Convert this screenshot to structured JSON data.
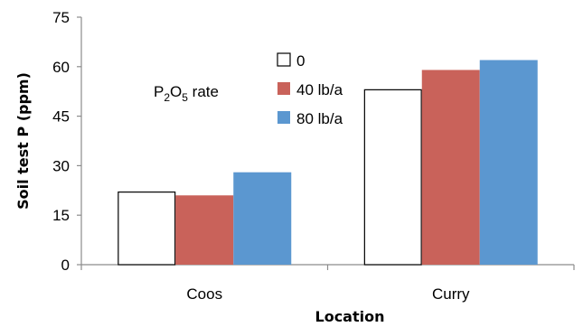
{
  "chart_data": {
    "type": "bar",
    "categories": [
      "Coos",
      "Curry"
    ],
    "series": [
      {
        "name": "0",
        "values": [
          22,
          53
        ],
        "color": "#ffffff",
        "stroke": "#000000"
      },
      {
        "name": "40 lb/a",
        "values": [
          21,
          59
        ],
        "color": "#c9625a",
        "stroke": "none"
      },
      {
        "name": "80 lb/a",
        "values": [
          28,
          62
        ],
        "color": "#5b97d0",
        "stroke": "none"
      }
    ],
    "xlabel": "Location",
    "ylabel": "Soil test P (ppm)",
    "ylim": [
      0,
      75
    ],
    "yticks": [
      "0",
      "15",
      "30",
      "45",
      "60",
      "75"
    ],
    "legend_title": {
      "base": "P",
      "sub1": "2",
      "mid": "O",
      "sub2": "5",
      "suffix": " rate"
    },
    "grid": false,
    "legend_position": "top-center"
  }
}
